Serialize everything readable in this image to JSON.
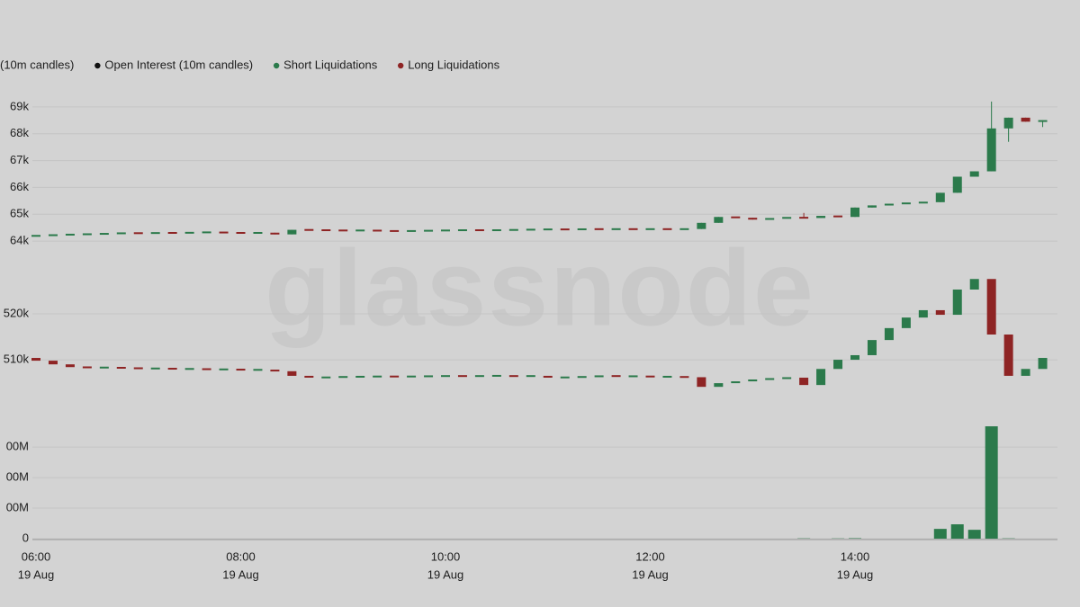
{
  "watermark": "glassnode",
  "chart_data": [
    {
      "type": "candlestick",
      "up_color": "#2b7a4b",
      "down_color": "#8e2424",
      "x": [
        "06:00",
        "06:10",
        "06:20",
        "06:30",
        "06:40",
        "06:50",
        "07:00",
        "07:10",
        "07:20",
        "07:30",
        "07:40",
        "07:50",
        "08:00",
        "08:10",
        "08:20",
        "08:30",
        "08:40",
        "08:50",
        "09:00",
        "09:10",
        "09:20",
        "09:30",
        "09:40",
        "09:50",
        "10:00",
        "10:10",
        "10:20",
        "10:30",
        "10:40",
        "10:50",
        "11:00",
        "11:10",
        "11:20",
        "11:30",
        "11:40",
        "11:50",
        "12:00",
        "12:10",
        "12:20",
        "12:30",
        "12:40",
        "12:50",
        "13:00",
        "13:10",
        "13:20",
        "13:30",
        "13:40",
        "13:50",
        "14:00",
        "14:10",
        "14:20",
        "14:30",
        "14:40",
        "14:50",
        "15:00",
        "15:10",
        "15:20",
        "15:30",
        "15:40",
        "15:50"
      ],
      "series": [
        {
          "name": "(10m candles)",
          "open": [
            64180,
            64210,
            64230,
            64250,
            64260,
            64280,
            64300,
            64290,
            64310,
            64300,
            64320,
            64330,
            64310,
            64300,
            64310,
            64250,
            64420,
            64410,
            64400,
            64390,
            64400,
            64380,
            64370,
            64380,
            64390,
            64400,
            64410,
            64400,
            64410,
            64420,
            64430,
            64440,
            64430,
            64450,
            64440,
            64450,
            64440,
            64450,
            64440,
            64450,
            64680,
            64900,
            64870,
            64800,
            64850,
            64880,
            64860,
            64940,
            64900,
            65250,
            65330,
            65390,
            65420,
            65450,
            65800,
            66400,
            66600,
            68200,
            68600,
            68450
          ],
          "high": [
            64210,
            64230,
            64250,
            64260,
            64280,
            64300,
            64300,
            64310,
            64310,
            64320,
            64330,
            64330,
            64310,
            64310,
            64310,
            64420,
            64420,
            64410,
            64400,
            64400,
            64400,
            64380,
            64380,
            64390,
            64400,
            64410,
            64410,
            64410,
            64420,
            64430,
            64440,
            64440,
            64450,
            64450,
            64450,
            64450,
            64450,
            64450,
            64450,
            64680,
            64900,
            64900,
            64870,
            64850,
            64880,
            65050,
            64940,
            64940,
            65250,
            65330,
            65390,
            65420,
            65450,
            65800,
            66400,
            66600,
            69200,
            68600,
            68600,
            68500
          ],
          "low": [
            64180,
            64210,
            64230,
            64250,
            64260,
            64280,
            64290,
            64290,
            64300,
            64300,
            64320,
            64310,
            64300,
            64300,
            64250,
            64250,
            64410,
            64400,
            64390,
            64390,
            64380,
            64370,
            64370,
            64380,
            64390,
            64400,
            64400,
            64400,
            64410,
            64420,
            64430,
            64430,
            64430,
            64440,
            64440,
            64440,
            64440,
            64440,
            64440,
            64450,
            64680,
            64870,
            64800,
            64800,
            64850,
            64860,
            64860,
            64900,
            64900,
            65250,
            65330,
            65390,
            65420,
            65450,
            65800,
            66400,
            66600,
            67700,
            68450,
            68250
          ],
          "close": [
            64210,
            64230,
            64250,
            64260,
            64280,
            64300,
            64290,
            64310,
            64300,
            64320,
            64330,
            64310,
            64300,
            64310,
            64250,
            64420,
            64410,
            64400,
            64390,
            64400,
            64380,
            64370,
            64380,
            64390,
            64400,
            64410,
            64400,
            64410,
            64420,
            64430,
            64440,
            64430,
            64450,
            64440,
            64450,
            64440,
            64450,
            64440,
            64450,
            64680,
            64900,
            64870,
            64800,
            64850,
            64880,
            64860,
            64940,
            64900,
            65250,
            65330,
            65390,
            65420,
            65450,
            65800,
            66400,
            66600,
            68200,
            68600,
            68450,
            68500
          ]
        }
      ],
      "ylim": [
        63400,
        69500
      ],
      "yticks": [
        {
          "value": 64000,
          "label": "64k"
        },
        {
          "value": 65000,
          "label": "65k"
        },
        {
          "value": 66000,
          "label": "66k"
        },
        {
          "value": 67000,
          "label": "67k"
        },
        {
          "value": 68000,
          "label": "68k"
        },
        {
          "value": 69000,
          "label": "69k"
        }
      ],
      "grid": true
    },
    {
      "type": "candlestick",
      "up_color": "#2b7a4b",
      "down_color": "#8e2424",
      "x": [
        "06:00",
        "06:10",
        "06:20",
        "06:30",
        "06:40",
        "06:50",
        "07:00",
        "07:10",
        "07:20",
        "07:30",
        "07:40",
        "07:50",
        "08:00",
        "08:10",
        "08:20",
        "08:30",
        "08:40",
        "08:50",
        "09:00",
        "09:10",
        "09:20",
        "09:30",
        "09:40",
        "09:50",
        "10:00",
        "10:10",
        "10:20",
        "10:30",
        "10:40",
        "10:50",
        "11:00",
        "11:10",
        "11:20",
        "11:30",
        "11:40",
        "11:50",
        "12:00",
        "12:10",
        "12:20",
        "12:30",
        "12:40",
        "12:50",
        "13:00",
        "13:10",
        "13:20",
        "13:30",
        "13:40",
        "13:50",
        "14:00",
        "14:10",
        "14:20",
        "14:30",
        "14:40",
        "14:50",
        "15:00",
        "15:10",
        "15:20",
        "15:30",
        "15:40",
        "15:50"
      ],
      "series": [
        {
          "name": "Open Interest (10m candles)",
          "color": "#111111",
          "open": [
            510400,
            509800,
            509000,
            508400,
            508300,
            508300,
            508200,
            508100,
            508100,
            508000,
            508000,
            507900,
            507900,
            507800,
            507800,
            507500,
            506500,
            506100,
            506200,
            506300,
            506300,
            506400,
            506300,
            506400,
            506400,
            506500,
            506400,
            506500,
            506500,
            506400,
            506500,
            506100,
            506200,
            506300,
            506500,
            506400,
            506400,
            506300,
            506300,
            506200,
            504100,
            504900,
            505300,
            505700,
            505900,
            506100,
            504500,
            508000,
            510000,
            511000,
            514300,
            516900,
            519200,
            520800,
            519800,
            525300,
            527600,
            515500,
            506500,
            508000
          ],
          "close": [
            509800,
            509000,
            508400,
            508300,
            508300,
            508200,
            508100,
            508100,
            508000,
            508000,
            507900,
            507900,
            507800,
            507800,
            507500,
            506500,
            506100,
            506200,
            506300,
            506300,
            506400,
            506300,
            506400,
            506400,
            506500,
            506400,
            506500,
            506500,
            506400,
            506500,
            506100,
            506200,
            506300,
            506500,
            506400,
            506400,
            506300,
            506300,
            506200,
            504100,
            504900,
            505300,
            505700,
            505900,
            506100,
            504500,
            508000,
            510000,
            511000,
            514300,
            516900,
            519200,
            520800,
            519800,
            525300,
            527600,
            515500,
            506500,
            508000,
            510400
          ]
        }
      ],
      "ylim": [
        501000,
        530000
      ],
      "yticks": [
        {
          "value": 510000,
          "label": "510k"
        },
        {
          "value": 520000,
          "label": "520k"
        }
      ],
      "grid": true
    },
    {
      "type": "bar",
      "x": [
        "06:00",
        "06:10",
        "06:20",
        "06:30",
        "06:40",
        "06:50",
        "07:00",
        "07:10",
        "07:20",
        "07:30",
        "07:40",
        "07:50",
        "08:00",
        "08:10",
        "08:20",
        "08:30",
        "08:40",
        "08:50",
        "09:00",
        "09:10",
        "09:20",
        "09:30",
        "09:40",
        "09:50",
        "10:00",
        "10:10",
        "10:20",
        "10:30",
        "10:40",
        "10:50",
        "11:00",
        "11:10",
        "11:20",
        "11:30",
        "11:40",
        "11:50",
        "12:00",
        "12:10",
        "12:20",
        "12:30",
        "12:40",
        "12:50",
        "13:00",
        "13:10",
        "13:20",
        "13:30",
        "13:40",
        "13:50",
        "14:00",
        "14:10",
        "14:20",
        "14:30",
        "14:40",
        "14:50",
        "15:00",
        "15:10",
        "15:20",
        "15:30",
        "15:40",
        "15:50"
      ],
      "series": [
        {
          "name": "Short Liquidations",
          "color": "#2b7a4b",
          "values": [
            0,
            0,
            0,
            0,
            0,
            0,
            0,
            0,
            0,
            0,
            0,
            0,
            0,
            0,
            0,
            0,
            0,
            0,
            0,
            0,
            0,
            0,
            0,
            0,
            0,
            0,
            0,
            0,
            0,
            0,
            0,
            0,
            0,
            0,
            0,
            0,
            0,
            0,
            0,
            0,
            0,
            0,
            0,
            0,
            0,
            1,
            0,
            0.8,
            1.5,
            0,
            0,
            0,
            0,
            32,
            47,
            29,
            368,
            1,
            0,
            0
          ]
        },
        {
          "name": "Long Liquidations",
          "color": "#8e2424",
          "values": [
            0,
            0,
            0,
            0,
            0,
            0,
            0,
            0,
            0,
            0,
            0,
            0,
            0,
            0,
            0,
            0,
            0,
            0,
            0,
            0,
            0,
            0,
            0,
            0,
            0,
            0,
            0,
            0,
            0,
            0,
            0,
            0,
            0,
            0,
            0,
            0,
            0,
            0,
            0,
            0,
            0,
            0,
            0,
            0,
            0,
            0,
            0,
            0,
            0,
            0,
            0,
            0,
            0,
            0,
            0,
            0,
            0,
            0,
            0,
            0
          ]
        }
      ],
      "ylim": [
        0,
        380
      ],
      "yticks": [
        0,
        {
          "value": 100,
          "label": "00M"
        },
        {
          "value": 200,
          "label": "00M"
        },
        {
          "value": 300,
          "label": "00M"
        }
      ],
      "xticks": [
        "06:00",
        "08:00",
        "10:00",
        "12:00",
        "14:00"
      ],
      "xtick_dates": [
        "19 Aug",
        "19 Aug",
        "19 Aug",
        "19 Aug",
        "19 Aug"
      ],
      "grid": true
    }
  ]
}
